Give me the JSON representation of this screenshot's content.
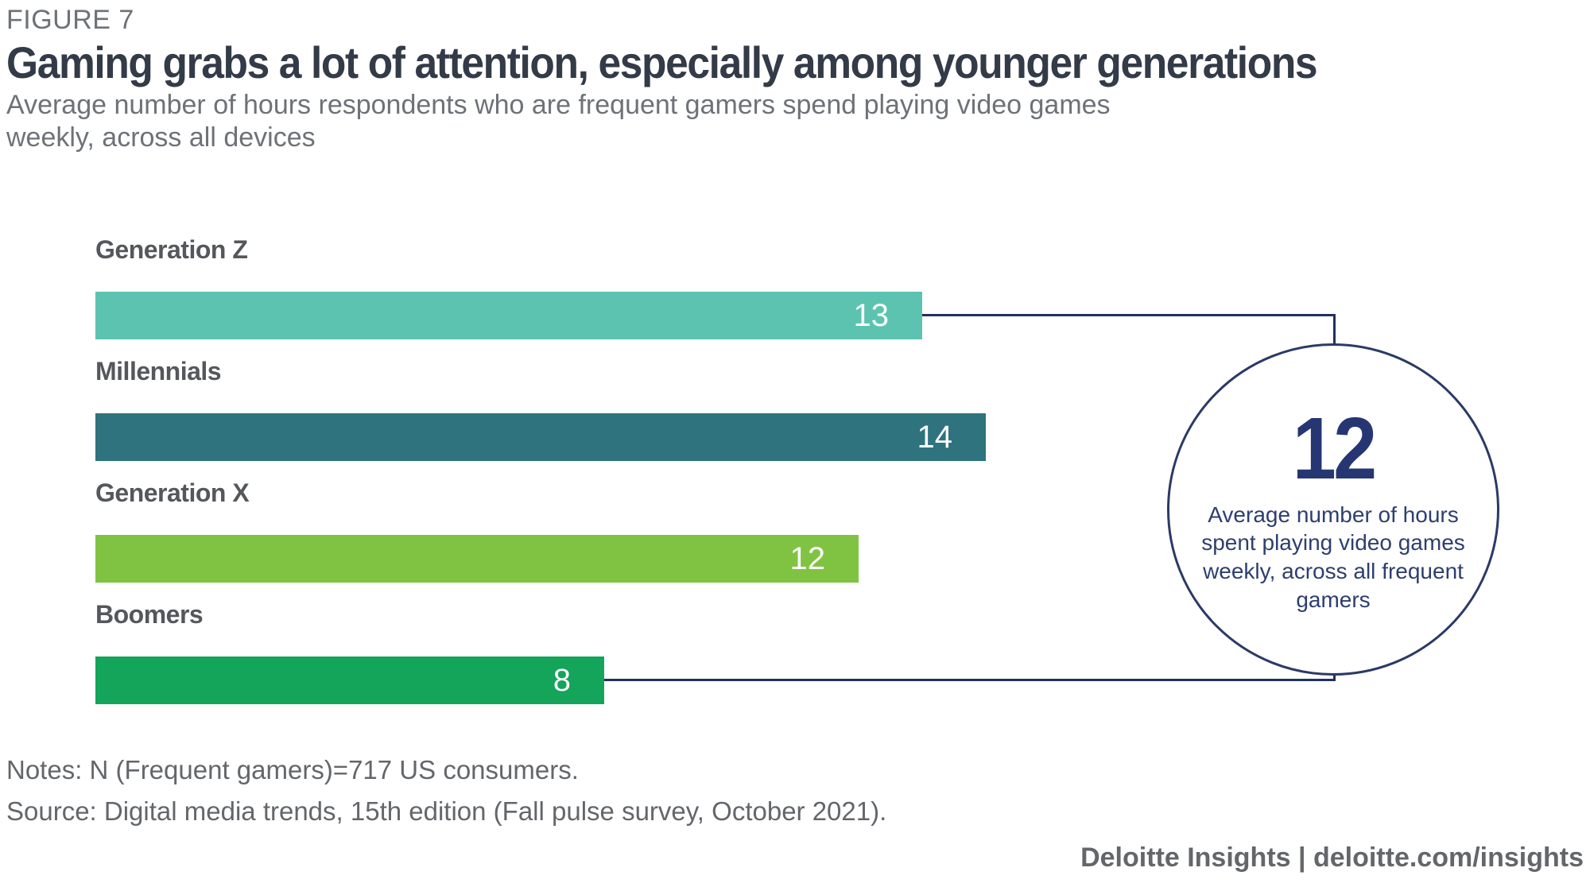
{
  "figure_label": "FIGURE 7",
  "title": "Gaming grabs a lot of attention, especially among younger generations",
  "subtitle": "Average number of hours respondents who are frequent gamers spend playing video games weekly, across all devices",
  "chart_data": {
    "type": "bar",
    "orientation": "horizontal",
    "categories": [
      "Generation Z",
      "Millennials",
      "Generation X",
      "Boomers"
    ],
    "values": [
      13,
      14,
      12,
      8
    ],
    "bar_colors": [
      "#5cc3b1",
      "#2e737d",
      "#80c342",
      "#14a45a"
    ],
    "value_label_color": "#ffffff",
    "xlim": [
      0,
      14
    ],
    "grid": false,
    "legend": "none",
    "callout": {
      "value": "12",
      "description": "Average number of hours spent playing video games weekly, across all frequent gamers",
      "connects_categories": [
        "Generation Z",
        "Boomers"
      ]
    }
  },
  "notes": "Notes: N (Frequent gamers)=717 US consumers.",
  "source": "Source: Digital media trends, 15th edition (Fall pulse survey, October 2021).",
  "footer": "Deloitte Insights | deloitte.com/insights",
  "colors": {
    "accent_navy": "#21315e",
    "title_color": "#333b48",
    "category_label_gray": "#54575c",
    "muted_gray": "#6d7278",
    "notes_gray": "#63666a"
  }
}
